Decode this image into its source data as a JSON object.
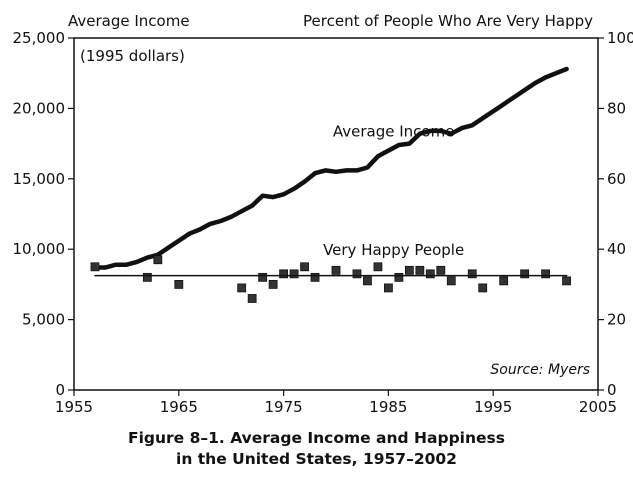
{
  "chart_data": {
    "type": "line",
    "title": "",
    "left_axis_title": "Average Income",
    "left_axis_unit": "(1995 dollars)",
    "right_axis_title": "Percent of People Who Are Very Happy",
    "x_ticks": [
      "1955",
      "1965",
      "1975",
      "1985",
      "1995",
      "2005"
    ],
    "x_tick_values": [
      1955,
      1965,
      1975,
      1985,
      1995,
      2005
    ],
    "y_left_ticks": [
      "0",
      "5,000",
      "10,000",
      "15,000",
      "20,000",
      "25,000"
    ],
    "y_left_tick_values": [
      0,
      5000,
      10000,
      15000,
      20000,
      25000
    ],
    "y_right_ticks": [
      "0",
      "20",
      "40",
      "60",
      "80",
      "100"
    ],
    "y_right_tick_values": [
      0,
      20,
      40,
      60,
      80,
      100
    ],
    "xlim": [
      1955,
      2005
    ],
    "ylim_left": [
      0,
      25000
    ],
    "ylim_right": [
      0,
      100
    ],
    "grid": false,
    "series": [
      {
        "name": "Average Income",
        "axis": "left",
        "style": "line",
        "x": [
          1957,
          1958,
          1959,
          1960,
          1961,
          1962,
          1963,
          1964,
          1965,
          1966,
          1967,
          1968,
          1969,
          1970,
          1971,
          1972,
          1973,
          1974,
          1975,
          1976,
          1977,
          1978,
          1979,
          1980,
          1981,
          1982,
          1983,
          1984,
          1985,
          1986,
          1987,
          1988,
          1989,
          1990,
          1991,
          1992,
          1993,
          1994,
          1995,
          1996,
          1997,
          1998,
          1999,
          2000,
          2001,
          2002
        ],
        "y": [
          8700,
          8700,
          8900,
          8900,
          9100,
          9400,
          9600,
          10100,
          10600,
          11100,
          11400,
          11800,
          12000,
          12300,
          12700,
          13100,
          13800,
          13700,
          13900,
          14300,
          14800,
          15400,
          15600,
          15500,
          15600,
          15600,
          15800,
          16600,
          17000,
          17400,
          17500,
          18200,
          18400,
          18400,
          18200,
          18600,
          18800,
          19300,
          19800,
          20300,
          20800,
          21300,
          21800,
          22200,
          22500,
          22800
        ]
      },
      {
        "name": "Very Happy People",
        "axis": "right",
        "style": "scatter",
        "x": [
          1957,
          1962,
          1963,
          1965,
          1971,
          1972,
          1973,
          1974,
          1975,
          1976,
          1977,
          1978,
          1980,
          1982,
          1983,
          1984,
          1985,
          1986,
          1987,
          1988,
          1989,
          1990,
          1991,
          1993,
          1994,
          1996,
          1998,
          2000,
          2002
        ],
        "y": [
          35,
          32,
          37,
          30,
          29,
          26,
          32,
          30,
          33,
          33,
          35,
          32,
          34,
          33,
          31,
          35,
          29,
          32,
          34,
          34,
          33,
          34,
          31,
          33,
          29,
          31,
          33,
          33,
          31
        ]
      },
      {
        "name": "Very Happy People trend",
        "axis": "right",
        "style": "line",
        "x": [
          1957,
          2002
        ],
        "y": [
          32.5,
          32.5
        ]
      }
    ],
    "annotations": [
      {
        "text": "Average Income",
        "x": 1985.5,
        "y_left": 18000
      },
      {
        "text": "Very Happy People",
        "x": 1985.5,
        "y_left": 9600
      },
      {
        "text": "Source: Myers",
        "position": "bottom-right"
      }
    ]
  },
  "caption": {
    "line1": "Figure 8–1.  Average Income and Happiness",
    "line2": "in the United States, 1957–2002"
  }
}
